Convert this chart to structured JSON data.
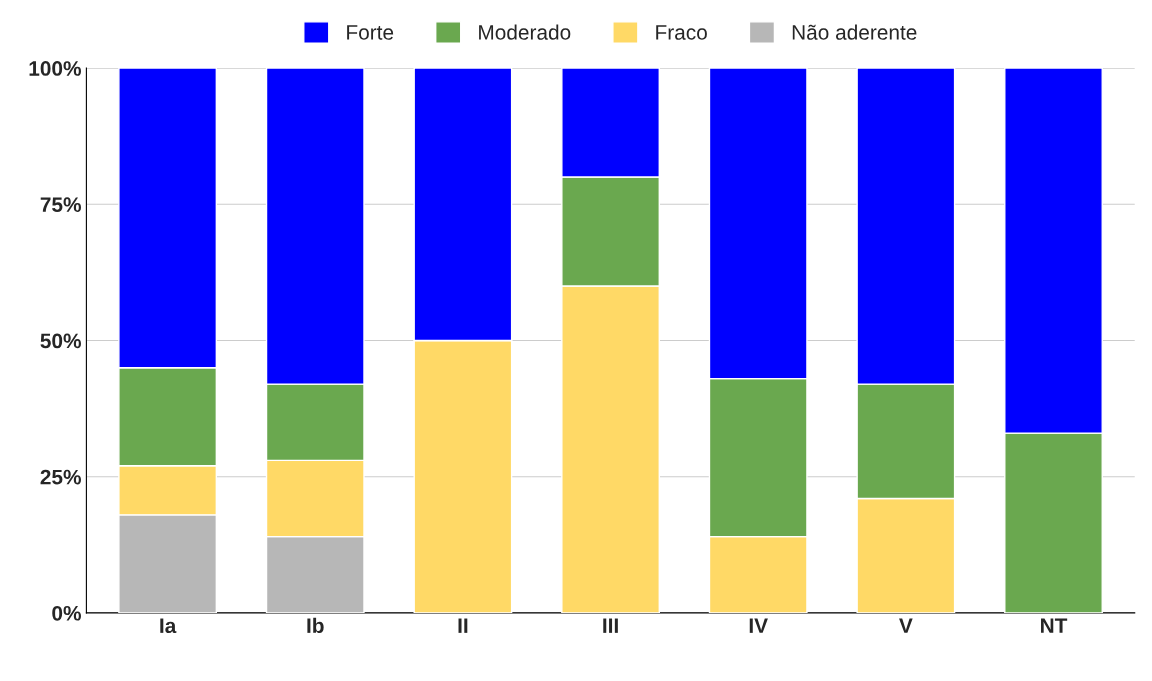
{
  "chart_data": {
    "type": "bar",
    "stacked": true,
    "categories": [
      "Ia",
      "Ib",
      "II",
      "III",
      "IV",
      "V",
      "NT"
    ],
    "series": [
      {
        "name": "Não aderente",
        "color": "#b7b7b7",
        "values": [
          18,
          14,
          0,
          0,
          0,
          0,
          0
        ]
      },
      {
        "name": "Fraco",
        "color": "#ffd966",
        "values": [
          9,
          14,
          50,
          60,
          14,
          21,
          0
        ]
      },
      {
        "name": "Moderado",
        "color": "#6aa84f",
        "values": [
          18,
          14,
          0,
          20,
          29,
          21,
          33
        ]
      },
      {
        "name": "Forte",
        "color": "#0000ff",
        "values": [
          55,
          58,
          50,
          20,
          57,
          58,
          67
        ]
      }
    ],
    "ylim": [
      0,
      100
    ],
    "yticks": [
      {
        "value": 0,
        "label": "0%"
      },
      {
        "value": 25,
        "label": "25%"
      },
      {
        "value": 50,
        "label": "50%"
      },
      {
        "value": 75,
        "label": "75%"
      },
      {
        "value": 100,
        "label": "100%"
      }
    ],
    "grid": "y",
    "legend": "top"
  }
}
